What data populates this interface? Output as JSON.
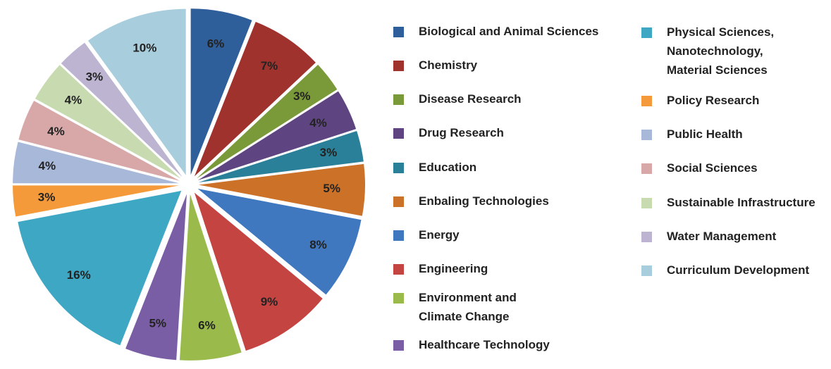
{
  "chart_data": {
    "type": "pie",
    "categories": [
      "Biological and Animal Sciences",
      "Chemistry",
      "Disease Research",
      "Drug Research",
      "Education",
      "Enbaling Technologies",
      "Energy",
      "Engineering",
      "Environment and\nClimate Change",
      "Healthcare Technology",
      "Physical Sciences,\nNanotechnology,\n Material Sciences",
      "Policy Research",
      "Public Health",
      "Social Sciences",
      "Sustainable Infrastructure",
      "Water Management",
      "Curriculum Development"
    ],
    "values": [
      6,
      7,
      3,
      4,
      3,
      5,
      8,
      9,
      6,
      5,
      16,
      3,
      4,
      4,
      4,
      3,
      10
    ],
    "value_labels": [
      "6%",
      "7%",
      "3%",
      "4%",
      "3%",
      "5%",
      "8%",
      "9%",
      "6%",
      "5%",
      "16%",
      "3%",
      "4%",
      "4%",
      "4%",
      "3%",
      "10%"
    ],
    "colors": [
      "#2e5f9a",
      "#a0322e",
      "#7a9a3a",
      "#5e4480",
      "#2a8098",
      "#cc7228",
      "#3f78bf",
      "#c44441",
      "#9abb4c",
      "#7a5ea5",
      "#3ea8c4",
      "#f59a3a",
      "#a8b8d8",
      "#d8a8a8",
      "#c8dbb0",
      "#bcb4d0",
      "#a8cddc"
    ]
  }
}
